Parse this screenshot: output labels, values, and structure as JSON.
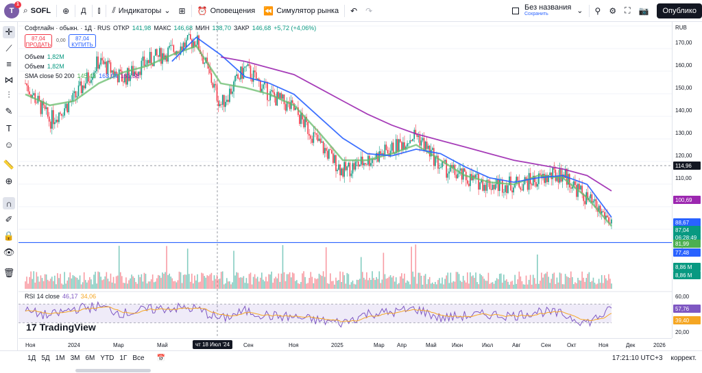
{
  "topbar": {
    "avatar_letter": "T",
    "avatar_badge": "1",
    "ticker": "SOFL",
    "interval": "Д",
    "indicators_label": "Индикаторы",
    "alerts_label": "Оповещения",
    "replay_label": "Симулятор рынка",
    "layout_name": "Без названия",
    "layout_status": "Сохранить",
    "publish_label": "Опублико"
  },
  "legend": {
    "symbol": "Софтлайн · обыкн. · 1Д · RUS",
    "open_label": "ОТКР",
    "open": "141,98",
    "high_label": "МАКС",
    "high": "146,68",
    "low_label": "МИН",
    "low": "138,70",
    "close_label": "ЗАКР",
    "close": "146,68",
    "change": "+5,72 (+4,06%)",
    "sell_price": "87,04",
    "sell_label": "ПРОДАТЬ",
    "buy_price": "87,04",
    "buy_label": "КУПИТЬ",
    "spread": "0,00",
    "volume_label_1": "Объем",
    "volume_value_1": "1,82M",
    "volume_label_2": "Объем",
    "volume_value_2": "1,82M",
    "sma_label": "SMA close 50 200",
    "sma_v1": "145,43",
    "sma_v2": "163,04",
    "sma_v3": "161,58",
    "currency": "RUB"
  },
  "price_axis": {
    "labels": [
      "170,00",
      "160,00",
      "150,00",
      "140,00",
      "130,00",
      "120,00",
      "110,00",
      "100,00",
      "90,00",
      "80,00"
    ],
    "rsi_labels": [
      "60,00",
      "20,00"
    ],
    "tags": [
      {
        "value": "114,96",
        "color": "#131722"
      },
      {
        "value": "100,69",
        "color": "#9c27b0"
      },
      {
        "value": "88,67",
        "color": "#2962ff"
      },
      {
        "value": "87,04",
        "color": "#089981"
      },
      {
        "value": "06:28:49",
        "color": "#089981"
      },
      {
        "value": "81,99",
        "color": "#4caf50"
      },
      {
        "value": "77,48",
        "color": "#2962ff"
      },
      {
        "value": "8,86 M",
        "color": "#089981"
      },
      {
        "value": "8,86 M",
        "color": "#089981"
      },
      {
        "value": "57,76",
        "color": "#7e57c2"
      },
      {
        "value": "39,40",
        "color": "#f5a623"
      }
    ]
  },
  "rsi": {
    "label": "RSI 14 close",
    "v1": "46,17",
    "v2": "34,06"
  },
  "time_axis": {
    "labels": [
      "Ноя",
      "2024",
      "Мар",
      "Май",
      "Сен",
      "Ноя",
      "2025",
      "Мар",
      "Апр",
      "Май",
      "Июн",
      "Июл",
      "Авг",
      "Сен",
      "Окт",
      "Ноя",
      "Дек",
      "2026"
    ],
    "cursor": "чт 18 Июл '24"
  },
  "bottombar": {
    "ranges": [
      "1Д",
      "5Д",
      "1М",
      "3М",
      "6М",
      "YTD",
      "1Г",
      "Все"
    ],
    "clock": "17:21:10 UTC+3",
    "adjust": "коррект."
  },
  "logo": "TradingView",
  "chart_data": {
    "type": "line",
    "x": [
      "2023-11",
      "2023-12",
      "2024-01",
      "2024-02",
      "2024-03",
      "2024-04",
      "2024-05",
      "2024-06",
      "2024-07",
      "2024-08",
      "2024-09",
      "2024-10",
      "2024-11",
      "2024-12",
      "2025-01",
      "2025-02",
      "2025-03",
      "2025-04",
      "2025-05",
      "2025-06",
      "2025-07",
      "2025-08",
      "2025-09",
      "2025-10",
      "2025-11"
    ],
    "price": [
      150,
      133,
      143,
      160,
      152,
      160,
      165,
      170,
      140,
      157,
      145,
      138,
      123,
      110,
      115,
      120,
      127,
      112,
      107,
      104,
      104,
      106,
      109,
      97,
      87
    ],
    "series": [
      {
        "values": [
          145,
          140,
          142,
          150,
          155,
          158,
          163,
          167,
          150,
          148,
          145,
          140,
          128,
          115,
          115,
          118,
          122,
          115,
          108,
          105,
          104,
          108,
          107,
          98,
          85
        ]
      },
      {
        "values": [
          null,
          null,
          null,
          null,
          null,
          null,
          160,
          171,
          163,
          153,
          150,
          145,
          135,
          125,
          118,
          117,
          120,
          118,
          112,
          107,
          105,
          107,
          108,
          104,
          89
        ]
      },
      {
        "values": [
          null,
          null,
          null,
          null,
          null,
          null,
          null,
          null,
          162,
          160,
          157,
          154,
          148,
          142,
          136,
          131,
          127,
          124,
          121,
          118,
          115,
          113,
          111,
          108,
          101
        ]
      }
    ],
    "ylim": [
      72,
      178
    ],
    "rsi_ylim": [
      15,
      85
    ],
    "rsi": [
      55,
      45,
      60,
      65,
      50,
      58,
      62,
      60,
      38,
      55,
      45,
      42,
      35,
      30,
      50,
      52,
      60,
      40,
      45,
      48,
      45,
      55,
      48,
      30,
      58
    ]
  }
}
